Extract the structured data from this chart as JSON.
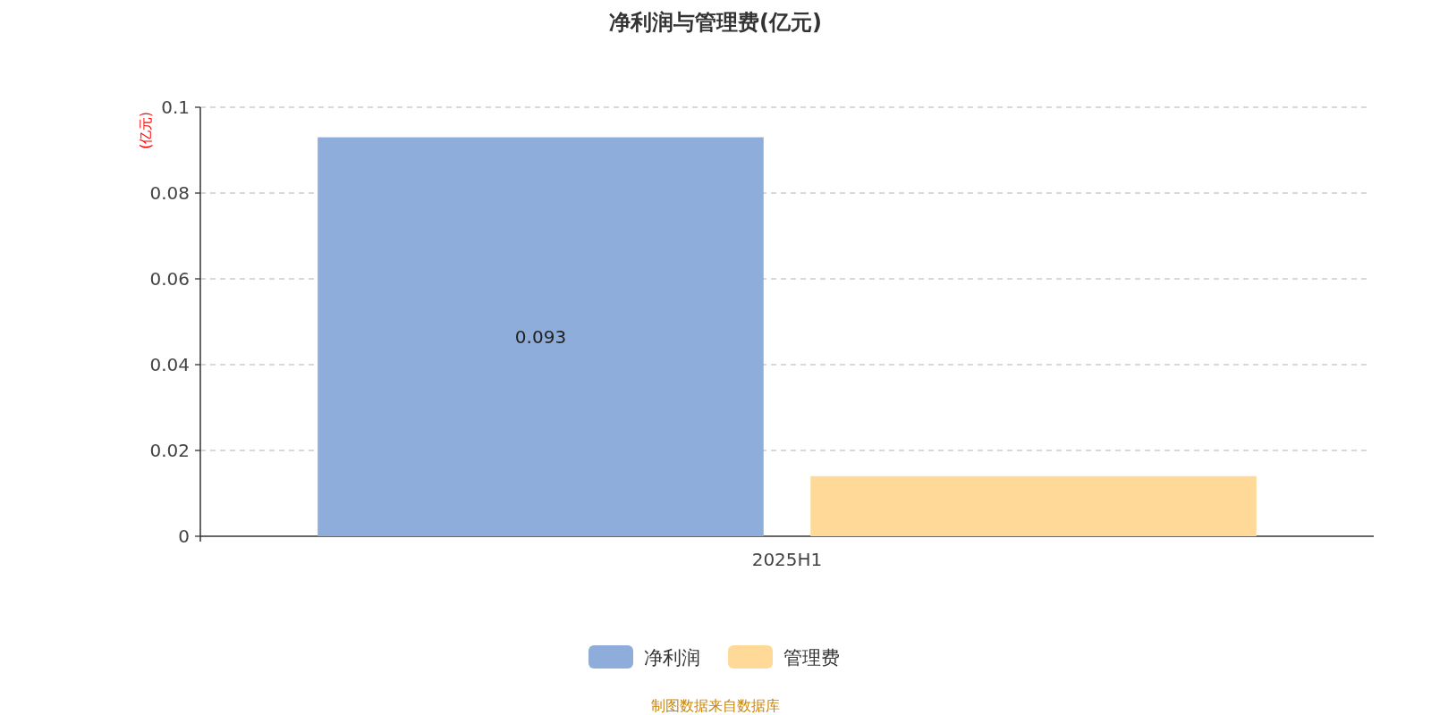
{
  "chart_data": {
    "type": "bar",
    "title": "净利润与管理费(亿元)",
    "ylabel": "(亿元)",
    "categories": [
      "2025H1"
    ],
    "series": [
      {
        "name": "净利润",
        "color": "#8eaddb",
        "values": [
          0.093
        ],
        "value_labels": [
          "0.093"
        ]
      },
      {
        "name": "管理费",
        "color": "#fed998",
        "values": [
          0.014
        ]
      }
    ],
    "ylim": [
      0,
      0.1
    ],
    "yticks": [
      0,
      0.02,
      0.04,
      0.06,
      0.08,
      0.1
    ],
    "grid": "y",
    "legend": "bottom",
    "annotations": [
      "制图数据来自数据库"
    ]
  }
}
